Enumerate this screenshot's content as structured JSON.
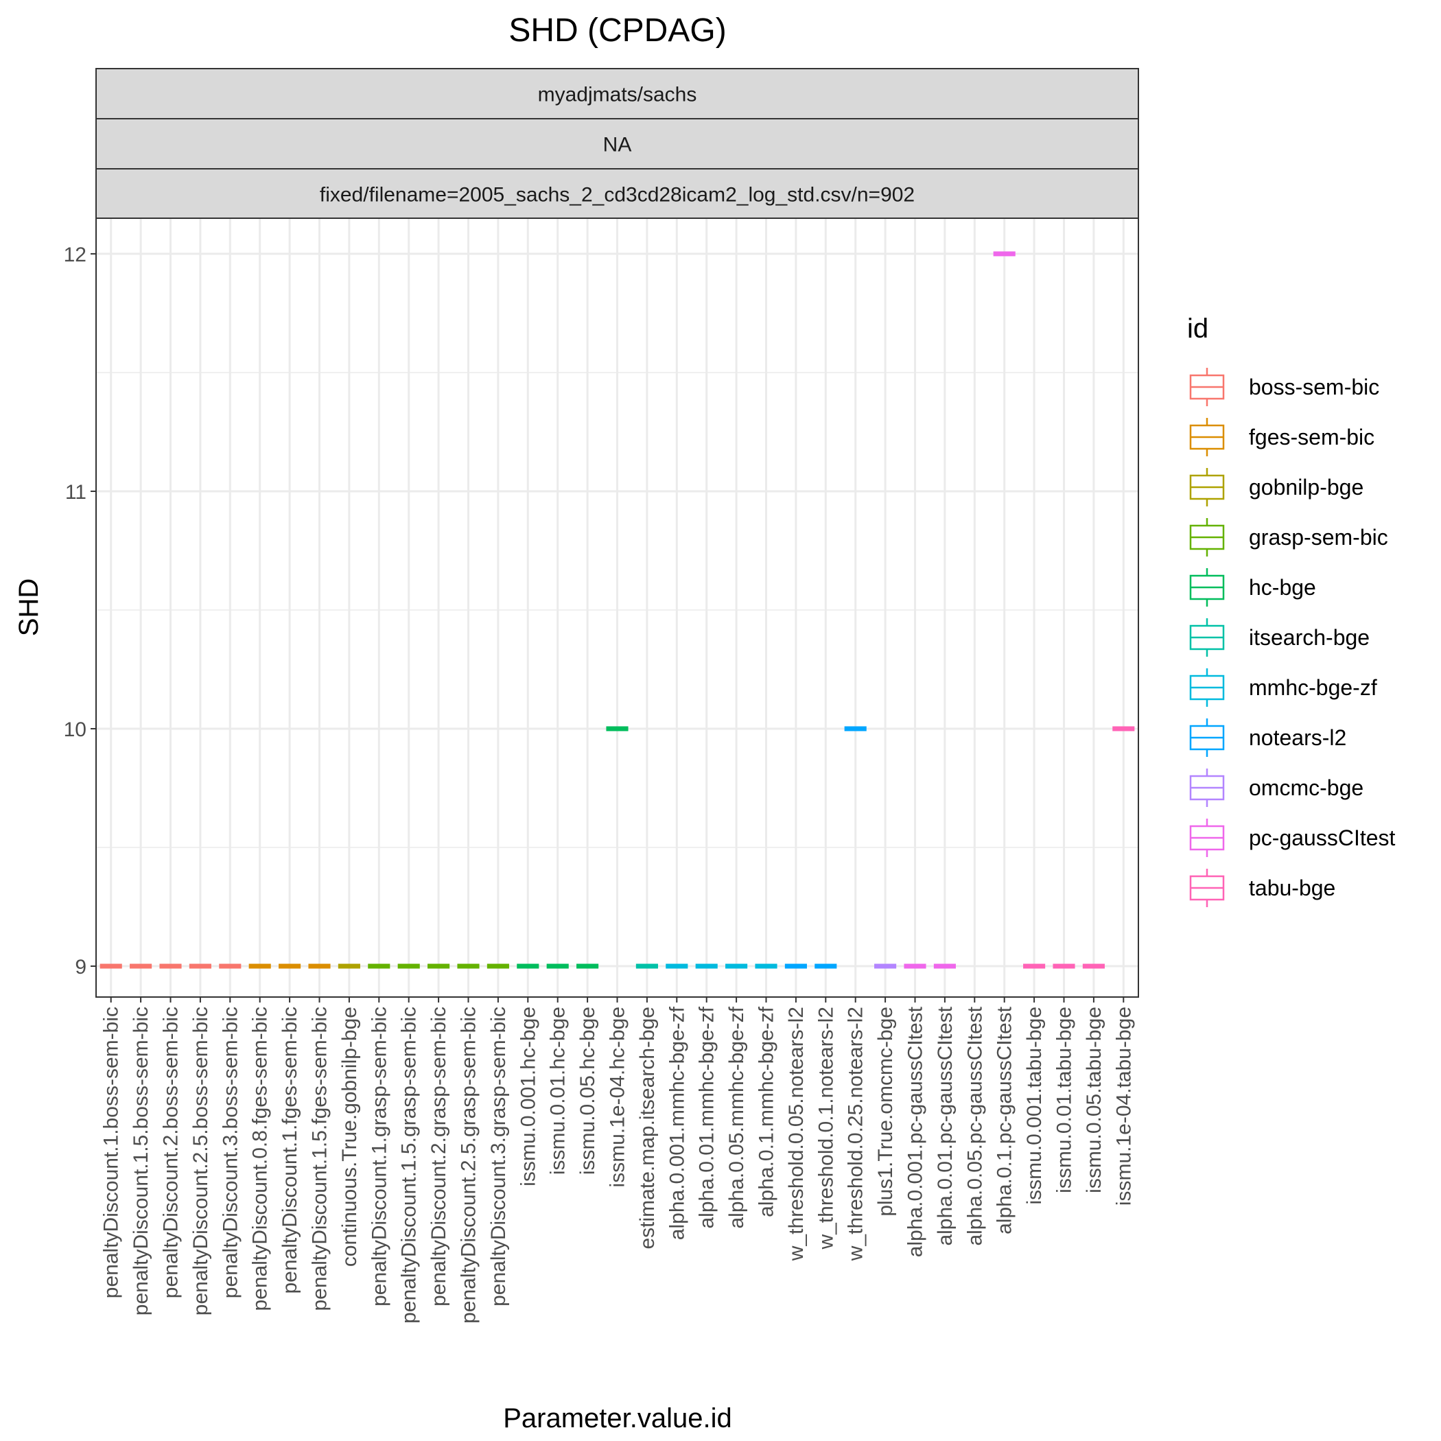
{
  "chart_data": {
    "type": "boxplot",
    "title": "SHD (CPDAG)",
    "xlabel": "Parameter.value.id",
    "ylabel": "SHD",
    "ylim": [
      8.87,
      12.15
    ],
    "yticks": [
      9,
      10,
      11,
      12
    ],
    "grid": true,
    "facet_strips": [
      "myadjmats/sachs",
      "NA",
      "fixed/filename=2005_sachs_2_cd3cd28icam2_log_std.csv/n=902"
    ],
    "legend": {
      "title": "id",
      "position": "right",
      "entries": [
        {
          "label": "boss-sem-bic",
          "color": "#F8766D"
        },
        {
          "label": "fges-sem-bic",
          "color": "#DB8E00"
        },
        {
          "label": "gobnilp-bge",
          "color": "#AEA200"
        },
        {
          "label": "grasp-sem-bic",
          "color": "#64B200"
        },
        {
          "label": "hc-bge",
          "color": "#00BD5C"
        },
        {
          "label": "itsearch-bge",
          "color": "#00C1A7"
        },
        {
          "label": "mmhc-bge-zf",
          "color": "#00BADE"
        },
        {
          "label": "notears-l2",
          "color": "#00A6FF"
        },
        {
          "label": "omcmc-bge",
          "color": "#B385FF"
        },
        {
          "label": "pc-gaussCItest",
          "color": "#EF67EB"
        },
        {
          "label": "tabu-bge",
          "color": "#FF63B6"
        }
      ]
    },
    "categories": [
      "penaltyDiscount.1.boss-sem-bic",
      "penaltyDiscount.1.5.boss-sem-bic",
      "penaltyDiscount.2.boss-sem-bic",
      "penaltyDiscount.2.5.boss-sem-bic",
      "penaltyDiscount.3.boss-sem-bic",
      "penaltyDiscount.0.8.fges-sem-bic",
      "penaltyDiscount.1.fges-sem-bic",
      "penaltyDiscount.1.5.fges-sem-bic",
      "continuous.True.gobnilp-bge",
      "penaltyDiscount.1.grasp-sem-bic",
      "penaltyDiscount.1.5.grasp-sem-bic",
      "penaltyDiscount.2.grasp-sem-bic",
      "penaltyDiscount.2.5.grasp-sem-bic",
      "penaltyDiscount.3.grasp-sem-bic",
      "issmu.0.001.hc-bge",
      "issmu.0.01.hc-bge",
      "issmu.0.05.hc-bge",
      "issmu.1e-04.hc-bge",
      "estimate.map.itsearch-bge",
      "alpha.0.001.mmhc-bge-zf",
      "alpha.0.01.mmhc-bge-zf",
      "alpha.0.05.mmhc-bge-zf",
      "alpha.0.1.mmhc-bge-zf",
      "w_threshold.0.05.notears-l2",
      "w_threshold.0.1.notears-l2",
      "w_threshold.0.25.notears-l2",
      "plus1.True.omcmc-bge",
      "alpha.0.001.pc-gaussCItest",
      "alpha.0.01.pc-gaussCItest",
      "alpha.0.05.pc-gaussCItest",
      "alpha.0.1.pc-gaussCItest",
      "issmu.0.001.tabu-bge",
      "issmu.0.01.tabu-bge",
      "issmu.0.05.tabu-bge",
      "issmu.1e-04.tabu-bge"
    ],
    "groups": [
      "boss-sem-bic",
      "boss-sem-bic",
      "boss-sem-bic",
      "boss-sem-bic",
      "boss-sem-bic",
      "fges-sem-bic",
      "fges-sem-bic",
      "fges-sem-bic",
      "gobnilp-bge",
      "grasp-sem-bic",
      "grasp-sem-bic",
      "grasp-sem-bic",
      "grasp-sem-bic",
      "grasp-sem-bic",
      "hc-bge",
      "hc-bge",
      "hc-bge",
      "hc-bge",
      "itsearch-bge",
      "mmhc-bge-zf",
      "mmhc-bge-zf",
      "mmhc-bge-zf",
      "mmhc-bge-zf",
      "notears-l2",
      "notears-l2",
      "notears-l2",
      "omcmc-bge",
      "pc-gaussCItest",
      "pc-gaussCItest",
      "pc-gaussCItest",
      "pc-gaussCItest",
      "tabu-bge",
      "tabu-bge",
      "tabu-bge",
      "tabu-bge"
    ],
    "values": [
      9,
      9,
      9,
      9,
      9,
      9,
      9,
      9,
      9,
      9,
      9,
      9,
      9,
      9,
      9,
      9,
      9,
      10,
      9,
      9,
      9,
      9,
      9,
      9,
      9,
      10,
      9,
      9,
      9,
      null,
      12,
      9,
      9,
      9,
      10
    ]
  }
}
